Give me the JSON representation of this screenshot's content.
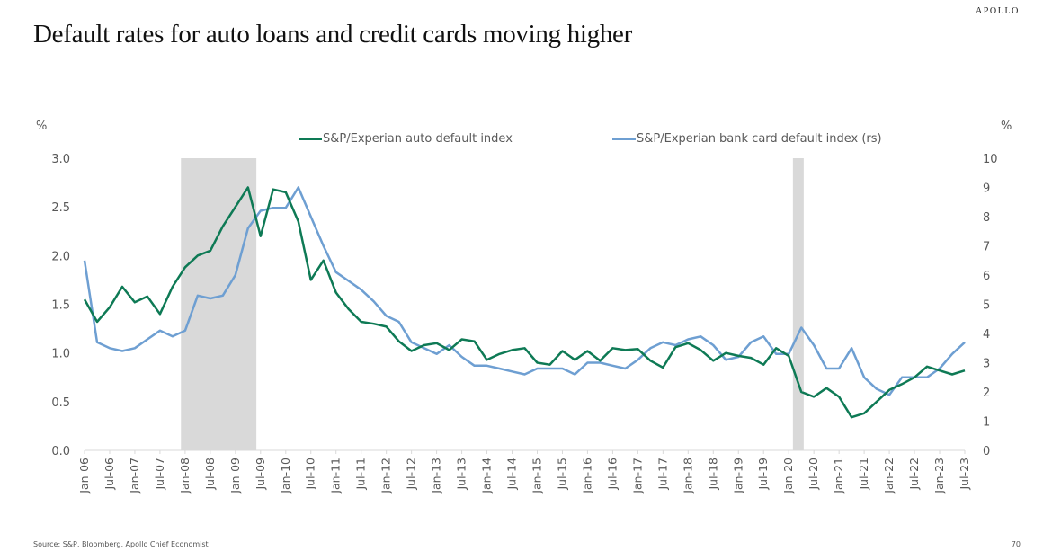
{
  "brand": "APOLLO",
  "title": "Default rates for auto loans and credit cards moving higher",
  "left_unit": "%",
  "right_unit": "%",
  "legend": [
    {
      "label": "S&P/Experian auto default index",
      "color": "#0e7a55"
    },
    {
      "label": "S&P/Experian bank card default index (rs)",
      "color": "#6e9fd2"
    }
  ],
  "source": "Source: S&P, Bloomberg, Apollo Chief Economist",
  "page_number": "70",
  "chart_data": {
    "type": "line",
    "title": "Default rates for auto loans and credit cards moving higher",
    "xlabel": "",
    "ylabel_left": "%",
    "ylabel_right": "%",
    "ylim_left": [
      0,
      3.0
    ],
    "ylim_right": [
      0,
      10
    ],
    "yticks_left": [
      "0.0",
      "0.5",
      "1.0",
      "1.5",
      "2.0",
      "2.5",
      "3.0"
    ],
    "yticks_right": [
      "0",
      "1",
      "2",
      "3",
      "4",
      "5",
      "6",
      "7",
      "8",
      "9",
      "10"
    ],
    "xticks": [
      "Jan-06",
      "Jul-06",
      "Jan-07",
      "Jul-07",
      "Jan-08",
      "Jul-08",
      "Jan-09",
      "Jul-09",
      "Jan-10",
      "Jul-10",
      "Jan-11",
      "Jul-11",
      "Jan-12",
      "Jul-12",
      "Jan-13",
      "Jul-13",
      "Jan-14",
      "Jul-14",
      "Jan-15",
      "Jul-15",
      "Jan-16",
      "Jul-16",
      "Jan-17",
      "Jul-17",
      "Jan-18",
      "Jul-18",
      "Jan-19",
      "Jul-19",
      "Jan-20",
      "Jul-20",
      "Jan-21",
      "Jul-21",
      "Jan-22",
      "Jul-22",
      "Jan-23",
      "Jul-23"
    ],
    "grid": false,
    "legend_position": "top",
    "shaded_recessions": [
      [
        "Dec-07",
        "Jun-09"
      ],
      [
        "Feb-20",
        "Apr-20"
      ]
    ],
    "x": [
      "Jan-06",
      "Apr-06",
      "Jul-06",
      "Oct-06",
      "Jan-07",
      "Apr-07",
      "Jul-07",
      "Oct-07",
      "Jan-08",
      "Apr-08",
      "Jul-08",
      "Oct-08",
      "Jan-09",
      "Apr-09",
      "Jul-09",
      "Oct-09",
      "Jan-10",
      "Apr-10",
      "Jul-10",
      "Oct-10",
      "Jan-11",
      "Apr-11",
      "Jul-11",
      "Oct-11",
      "Jan-12",
      "Apr-12",
      "Jul-12",
      "Oct-12",
      "Jan-13",
      "Apr-13",
      "Jul-13",
      "Oct-13",
      "Jan-14",
      "Apr-14",
      "Jul-14",
      "Oct-14",
      "Jan-15",
      "Apr-15",
      "Jul-15",
      "Oct-15",
      "Jan-16",
      "Apr-16",
      "Jul-16",
      "Oct-16",
      "Jan-17",
      "Apr-17",
      "Jul-17",
      "Oct-17",
      "Jan-18",
      "Apr-18",
      "Jul-18",
      "Oct-18",
      "Jan-19",
      "Apr-19",
      "Jul-19",
      "Oct-19",
      "Jan-20",
      "Apr-20",
      "Jul-20",
      "Oct-20",
      "Jan-21",
      "Apr-21",
      "Jul-21",
      "Oct-21",
      "Jan-22",
      "Apr-22",
      "Jul-22",
      "Oct-22",
      "Jan-23",
      "Apr-23",
      "Jul-23"
    ],
    "series": [
      {
        "name": "S&P/Experian auto default index",
        "axis": "left",
        "color": "#0e7a55",
        "values": [
          1.55,
          1.32,
          1.47,
          1.68,
          1.52,
          1.58,
          1.4,
          1.68,
          1.88,
          2.0,
          2.05,
          2.3,
          2.5,
          2.7,
          2.2,
          2.68,
          2.65,
          2.35,
          1.75,
          1.95,
          1.62,
          1.45,
          1.32,
          1.3,
          1.27,
          1.12,
          1.02,
          1.08,
          1.1,
          1.03,
          1.14,
          1.12,
          0.93,
          0.99,
          1.03,
          1.05,
          0.9,
          0.88,
          1.02,
          0.93,
          1.02,
          0.92,
          1.05,
          1.03,
          1.04,
          0.92,
          0.85,
          1.06,
          1.1,
          1.03,
          0.92,
          1.0,
          0.97,
          0.95,
          0.88,
          1.05,
          0.97,
          0.6,
          0.55,
          0.64,
          0.55,
          0.34,
          0.38,
          0.5,
          0.62,
          0.68,
          0.75,
          0.86,
          0.82,
          0.78,
          0.82
        ]
      },
      {
        "name": "S&P/Experian bank card default index (rs)",
        "axis": "right",
        "color": "#6e9fd2",
        "values": [
          6.5,
          3.7,
          3.5,
          3.4,
          3.5,
          3.8,
          4.1,
          3.9,
          4.1,
          5.3,
          5.2,
          5.3,
          6.0,
          7.6,
          8.2,
          8.3,
          8.3,
          9.0,
          8.0,
          7.0,
          6.1,
          5.8,
          5.5,
          5.1,
          4.6,
          4.4,
          3.7,
          3.5,
          3.3,
          3.6,
          3.2,
          2.9,
          2.9,
          2.8,
          2.7,
          2.6,
          2.8,
          2.8,
          2.8,
          2.6,
          3.0,
          3.0,
          2.9,
          2.8,
          3.1,
          3.5,
          3.7,
          3.6,
          3.8,
          3.9,
          3.6,
          3.1,
          3.2,
          3.7,
          3.9,
          3.3,
          3.3,
          4.2,
          3.6,
          2.8,
          2.8,
          3.5,
          2.5,
          2.1,
          1.9,
          2.5,
          2.5,
          2.5,
          2.8,
          3.3,
          3.7
        ]
      }
    ]
  }
}
